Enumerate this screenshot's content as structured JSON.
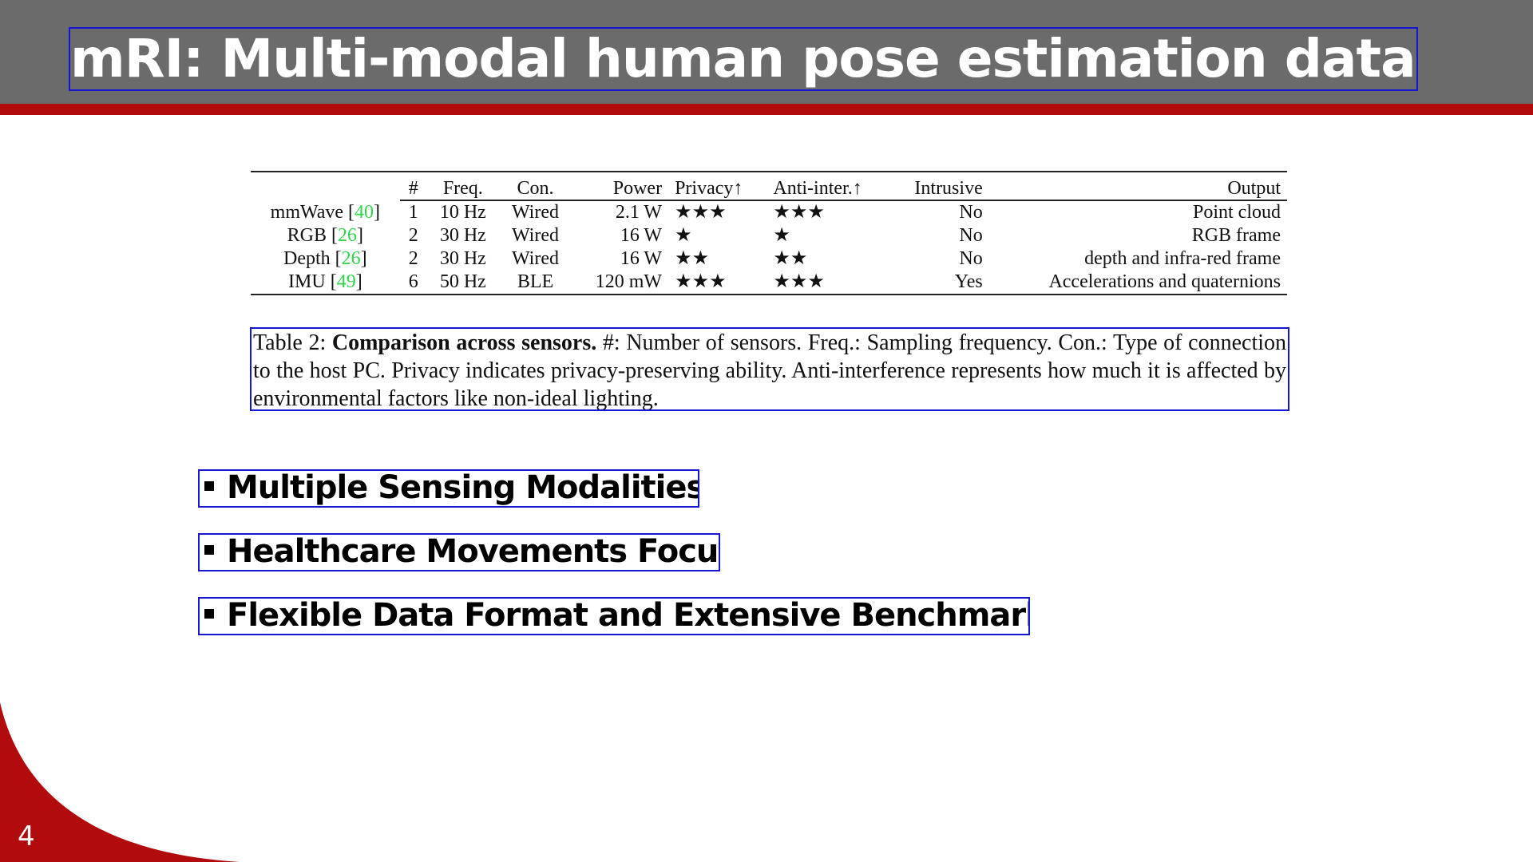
{
  "slide": {
    "title": "mRI: Multi-modal human pose estimation dataset",
    "page_number": "4"
  },
  "table": {
    "headers": [
      "",
      "#",
      "Freq.",
      "Con.",
      "Power",
      "Privacy↑",
      "Anti-inter.↑",
      "Intrusive",
      "Output"
    ],
    "rows": [
      {
        "name": "mmWave",
        "ref": "40",
        "count": "1",
        "freq": "10 Hz",
        "con": "Wired",
        "power": "2.1 W",
        "privacy": "★★★",
        "anti": "★★★",
        "intrusive": "No",
        "output": "Point cloud"
      },
      {
        "name": "RGB",
        "ref": "26",
        "count": "2",
        "freq": "30 Hz",
        "con": "Wired",
        "power": "16 W",
        "privacy": "★",
        "anti": "★",
        "intrusive": "No",
        "output": "RGB frame"
      },
      {
        "name": "Depth",
        "ref": "26",
        "count": "2",
        "freq": "30 Hz",
        "con": "Wired",
        "power": "16 W",
        "privacy": "★★",
        "anti": "★★",
        "intrusive": "No",
        "output": "depth and infra-red frame"
      },
      {
        "name": "IMU",
        "ref": "49",
        "count": "6",
        "freq": "50 Hz",
        "con": "BLE",
        "power": "120 mW",
        "privacy": "★★★",
        "anti": "★★★",
        "intrusive": "Yes",
        "output": "Accelerations and quaternions"
      }
    ]
  },
  "caption": {
    "label": "Table 2:",
    "bold": "Comparison across sensors.",
    "text": "#: Number of sensors. Freq.: Sampling frequency. Con.: Type of connection to the host PC. Privacy indicates privacy-preserving ability. Anti-interference represents how much it is affected by environmental factors like non-ideal lighting."
  },
  "bullets": [
    "Multiple Sensing Modalities.",
    "Healthcare Movements Focus.",
    "Flexible Data Format and Extensive Benchmarks."
  ],
  "colors": {
    "header_bg": "#6b6b6b",
    "accent_red": "#b10b0e",
    "citation_green": "#2fd64a",
    "annotation_blue": "#1515d6"
  }
}
